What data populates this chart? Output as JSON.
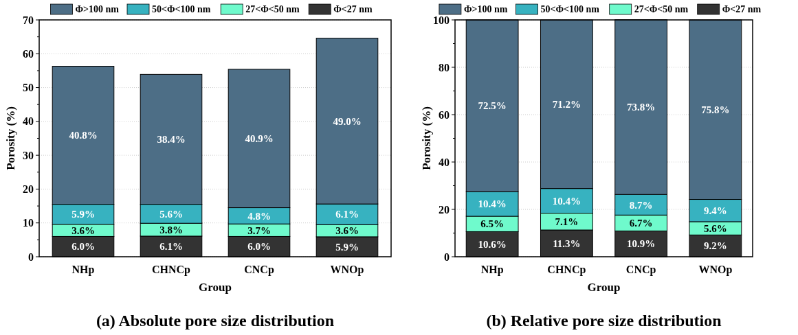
{
  "chart_data": [
    {
      "type": "bar",
      "title": "(a) Absolute pore size distribution",
      "xlabel": "Group",
      "ylabel": "Porosity (%)",
      "categories": [
        "NHp",
        "CHNCp",
        "CNCp",
        "WNOp"
      ],
      "stacked": true,
      "legend": "top",
      "grid": "y",
      "ylim": [
        0,
        70
      ],
      "yticks": [
        0,
        {
          "value": 5,
          "label": null
        },
        10,
        {
          "value": 15,
          "label": null
        },
        20,
        {
          "value": 25,
          "label": null
        },
        30,
        {
          "value": 35,
          "label": null
        },
        40,
        {
          "value": 45,
          "label": null
        },
        50,
        {
          "value": 55,
          "label": null
        },
        60,
        {
          "value": 65,
          "label": null
        },
        70
      ],
      "series": [
        {
          "name": "Φ<27 nm",
          "color": "#333333",
          "values": [
            6.0,
            6.1,
            6.0,
            5.9
          ],
          "value_labels": [
            "6.0%",
            "6.1%",
            "6.0%",
            "5.9%"
          ]
        },
        {
          "name": "27<Φ<50 nm",
          "color": "#6ffacc",
          "values": [
            3.6,
            3.8,
            3.7,
            3.6
          ],
          "value_labels": [
            "3.6%",
            "3.8%",
            "3.7%",
            "3.6%"
          ]
        },
        {
          "name": "50<Φ<100 nm",
          "color": "#37b2c0",
          "values": [
            5.9,
            5.6,
            4.8,
            6.1
          ],
          "value_labels": [
            "5.9%",
            "5.6%",
            "4.8%",
            "6.1%"
          ]
        },
        {
          "name": "Φ>100 nm",
          "color": "#4d6e86",
          "values": [
            40.8,
            38.4,
            40.9,
            49.0
          ],
          "value_labels": [
            "40.8%",
            "38.4%",
            "40.9%",
            "49.0%"
          ]
        }
      ]
    },
    {
      "type": "bar",
      "title": "(b) Relative pore size distribution",
      "xlabel": "Group",
      "ylabel": "Porosity (%)",
      "categories": [
        "NHp",
        "CHNCp",
        "CNCp",
        "WNOp"
      ],
      "stacked": true,
      "legend": "top",
      "grid": "y",
      "ylim": [
        0,
        100
      ],
      "yticks": [
        0,
        {
          "value": 10,
          "label": null
        },
        20,
        {
          "value": 30,
          "label": null
        },
        40,
        {
          "value": 50,
          "label": null
        },
        60,
        {
          "value": 70,
          "label": null
        },
        80,
        {
          "value": 90,
          "label": null
        },
        100
      ],
      "series": [
        {
          "name": "Φ<27 nm",
          "color": "#333333",
          "values": [
            10.6,
            11.3,
            10.9,
            9.2
          ],
          "value_labels": [
            "10.6%",
            "11.3%",
            "10.9%",
            "9.2%"
          ]
        },
        {
          "name": "27<Φ<50 nm",
          "color": "#6ffacc",
          "values": [
            6.5,
            7.1,
            6.7,
            5.6
          ],
          "value_labels": [
            "6.5%",
            "7.1%",
            "6.7%",
            "5.6%"
          ]
        },
        {
          "name": "50<Φ<100 nm",
          "color": "#37b2c0",
          "values": [
            10.4,
            10.4,
            8.7,
            9.4
          ],
          "value_labels": [
            "10.4%",
            "10.4%",
            "8.7%",
            "9.4%"
          ]
        },
        {
          "name": "Φ>100 nm",
          "color": "#4d6e86",
          "values": [
            72.5,
            71.2,
            73.8,
            75.8
          ],
          "value_labels": [
            "72.5%",
            "71.2%",
            "73.8%",
            "75.8%"
          ]
        }
      ]
    }
  ]
}
